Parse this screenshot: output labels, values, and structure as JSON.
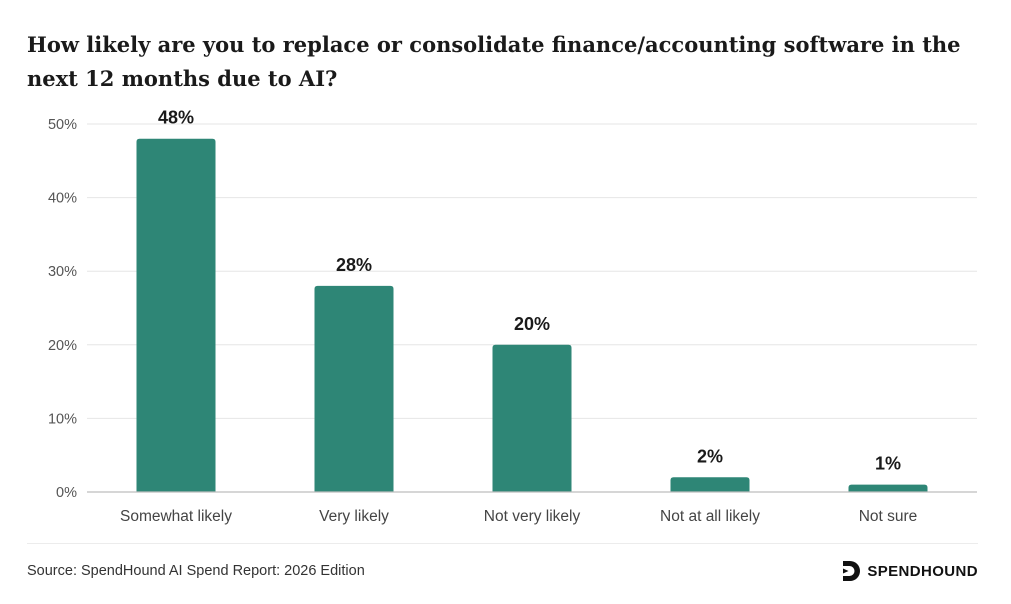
{
  "chart_data": {
    "type": "bar",
    "title": "How likely are you to replace or consolidate finance/accounting software in the next 12 months due to AI?",
    "categories": [
      "Somewhat likely",
      "Very likely",
      "Not very likely",
      "Not at all likely",
      "Not sure"
    ],
    "values": [
      48,
      28,
      20,
      2,
      1
    ],
    "value_labels": [
      "48%",
      "28%",
      "20%",
      "2%",
      "1%"
    ],
    "yticks": [
      0,
      10,
      20,
      30,
      40,
      50
    ],
    "ytick_labels": [
      "0%",
      "10%",
      "20%",
      "30%",
      "40%",
      "50%"
    ],
    "ylim": [
      0,
      50
    ],
    "xlabel": "",
    "ylabel": "",
    "grid": true,
    "bar_color": "#2e8676"
  },
  "footer": {
    "source": "Source: SpendHound AI Spend Report: 2026 Edition",
    "brand": "SPENDHOUND",
    "brand_icon": "spendhound-logo-icon"
  }
}
